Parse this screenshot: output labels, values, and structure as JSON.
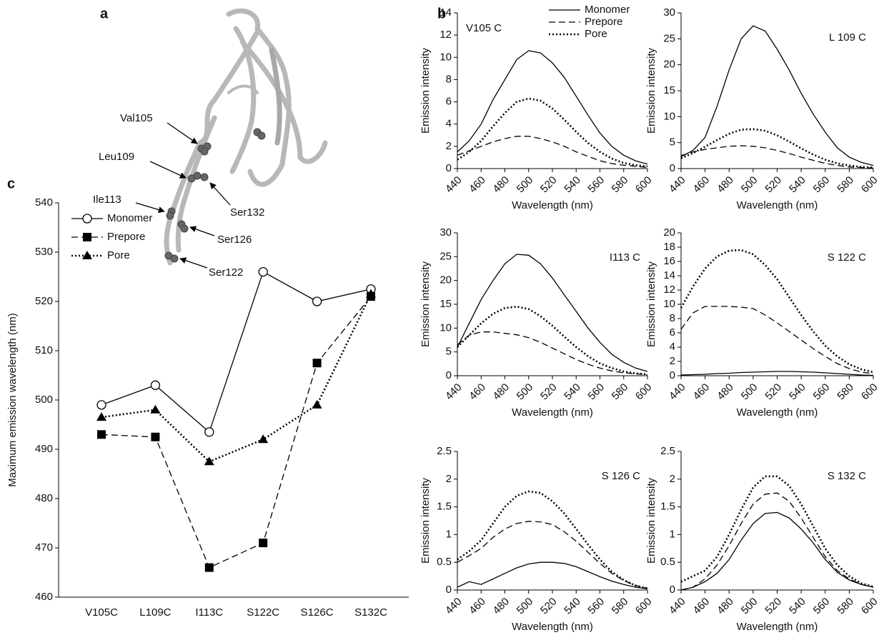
{
  "panel_labels": [
    "a",
    "b",
    "c"
  ],
  "panel_a": {
    "labels": [
      "Val105",
      "Leu109",
      "Ile113",
      "Ser132",
      "Ser126",
      "Ser122"
    ]
  },
  "chart_data": [
    {
      "type": "line",
      "annotation": "V105 C",
      "x": [
        440,
        450,
        460,
        470,
        480,
        490,
        500,
        510,
        520,
        530,
        540,
        550,
        560,
        570,
        580,
        590,
        600
      ],
      "xlim": [
        440,
        600
      ],
      "xticks": [
        440,
        460,
        480,
        500,
        520,
        540,
        560,
        580,
        600
      ],
      "ylim": [
        0,
        14
      ],
      "yticks": [
        0,
        2,
        4,
        6,
        8,
        10,
        12,
        14
      ],
      "xlabel": "Wavelength (nm)",
      "ylabel": "Emission intensity",
      "legend": "upper right",
      "series": [
        {
          "name": "Monomer",
          "color": "#000",
          "dash": "solid",
          "values": [
            1.5,
            2.5,
            4,
            6.2,
            8,
            9.8,
            10.6,
            10.4,
            9.5,
            8.2,
            6.5,
            4.8,
            3.2,
            2.0,
            1.2,
            0.7,
            0.4
          ]
        },
        {
          "name": "Prepore",
          "color": "#000",
          "dash": "dashed",
          "values": [
            1.2,
            1.6,
            2.0,
            2.4,
            2.7,
            2.9,
            2.9,
            2.7,
            2.4,
            2.0,
            1.5,
            1.1,
            0.7,
            0.45,
            0.3,
            0.2,
            0.1
          ]
        },
        {
          "name": "Pore",
          "color": "#000",
          "dash": "dotted",
          "values": [
            0.8,
            1.5,
            2.5,
            3.8,
            5.0,
            6.0,
            6.3,
            6.1,
            5.4,
            4.4,
            3.3,
            2.3,
            1.5,
            0.9,
            0.5,
            0.3,
            0.2
          ]
        }
      ]
    },
    {
      "type": "line",
      "annotation": "L 109 C",
      "x": [
        440,
        450,
        460,
        470,
        480,
        490,
        500,
        510,
        520,
        530,
        540,
        550,
        560,
        570,
        580,
        590,
        600
      ],
      "xlim": [
        440,
        600
      ],
      "xticks": [
        440,
        460,
        480,
        500,
        520,
        540,
        560,
        580,
        600
      ],
      "ylim": [
        0,
        30
      ],
      "yticks": [
        0,
        5,
        10,
        15,
        20,
        25,
        30
      ],
      "xlabel": "Wavelength (nm)",
      "ylabel": "Emission intensity",
      "series": [
        {
          "color": "#000",
          "dash": "solid",
          "values": [
            2.3,
            3.5,
            6,
            12,
            19,
            25,
            27.5,
            26.5,
            23,
            19,
            14.5,
            10.5,
            7,
            4,
            2.2,
            1.2,
            0.6
          ]
        },
        {
          "color": "#000",
          "dash": "dashed",
          "values": [
            2.5,
            3.2,
            3.7,
            4.0,
            4.3,
            4.4,
            4.3,
            4.0,
            3.5,
            2.9,
            2.2,
            1.6,
            1.0,
            0.6,
            0.3,
            0.2,
            0.1
          ]
        },
        {
          "color": "#000",
          "dash": "dotted",
          "values": [
            2,
            3,
            4.2,
            5.5,
            6.7,
            7.5,
            7.6,
            7.3,
            6.4,
            5.2,
            3.9,
            2.7,
            1.7,
            1,
            0.6,
            0.3,
            0.2
          ]
        }
      ]
    },
    {
      "type": "line",
      "annotation": "I113 C",
      "x": [
        440,
        450,
        460,
        470,
        480,
        490,
        500,
        510,
        520,
        530,
        540,
        550,
        560,
        570,
        580,
        590,
        600
      ],
      "xlim": [
        440,
        600
      ],
      "xticks": [
        440,
        460,
        480,
        500,
        520,
        540,
        560,
        580,
        600
      ],
      "ylim": [
        0,
        30
      ],
      "yticks": [
        0,
        5,
        10,
        15,
        20,
        25,
        30
      ],
      "xlabel": "Wavelength (nm)",
      "ylabel": "Emission intensity",
      "series": [
        {
          "color": "#000",
          "dash": "solid",
          "values": [
            6,
            11,
            16,
            20,
            23.5,
            25.5,
            25.3,
            23.5,
            20.5,
            17,
            13.5,
            10,
            7,
            4.5,
            2.8,
            1.6,
            0.9
          ]
        },
        {
          "color": "#000",
          "dash": "dashed",
          "values": [
            6.5,
            8.5,
            9.2,
            9.2,
            8.9,
            8.6,
            8,
            7,
            5.8,
            4.6,
            3.4,
            2.4,
            1.6,
            1,
            0.6,
            0.4,
            0.2
          ]
        },
        {
          "color": "#000",
          "dash": "dotted",
          "values": [
            6,
            8.5,
            11,
            13,
            14.2,
            14.5,
            14,
            12.5,
            10.5,
            8.2,
            6,
            4.1,
            2.6,
            1.6,
            0.9,
            0.5,
            0.3
          ]
        }
      ]
    },
    {
      "type": "line",
      "annotation": "S 122 C",
      "x": [
        440,
        450,
        460,
        470,
        480,
        490,
        500,
        510,
        520,
        530,
        540,
        550,
        560,
        570,
        580,
        590,
        600
      ],
      "xlim": [
        440,
        600
      ],
      "xticks": [
        440,
        460,
        480,
        500,
        520,
        540,
        560,
        580,
        600
      ],
      "ylim": [
        0,
        20
      ],
      "yticks": [
        0,
        2,
        4,
        6,
        8,
        10,
        12,
        14,
        16,
        18,
        20
      ],
      "xlabel": "Wavelength (nm)",
      "ylabel": "Emission intensity",
      "series": [
        {
          "color": "#000",
          "dash": "solid",
          "values": [
            0.1,
            0.15,
            0.2,
            0.3,
            0.35,
            0.45,
            0.5,
            0.55,
            0.6,
            0.6,
            0.55,
            0.5,
            0.4,
            0.3,
            0.2,
            0.1,
            0.05
          ]
        },
        {
          "color": "#000",
          "dash": "dashed",
          "values": [
            6.5,
            8.8,
            9.7,
            9.7,
            9.7,
            9.6,
            9.4,
            8.5,
            7.4,
            6.2,
            5,
            3.8,
            2.7,
            1.7,
            1,
            0.5,
            0.3
          ]
        },
        {
          "color": "#000",
          "dash": "dotted",
          "values": [
            9.5,
            12.5,
            15,
            16.7,
            17.5,
            17.6,
            17,
            15.5,
            13.5,
            11,
            8.5,
            6.2,
            4.2,
            2.7,
            1.6,
            0.9,
            0.5
          ]
        }
      ]
    },
    {
      "type": "line",
      "annotation": "S 126 C",
      "x": [
        440,
        450,
        460,
        470,
        480,
        490,
        500,
        510,
        520,
        530,
        540,
        550,
        560,
        570,
        580,
        590,
        600
      ],
      "xlim": [
        440,
        600
      ],
      "xticks": [
        440,
        460,
        480,
        500,
        520,
        540,
        560,
        580,
        600
      ],
      "ylim": [
        0,
        2.5
      ],
      "yticks": [
        0,
        0.5,
        1,
        1.5,
        2,
        2.5
      ],
      "xlabel": "Wavelength (nm)",
      "ylabel": "Emission intensity",
      "series": [
        {
          "color": "#000",
          "dash": "solid",
          "values": [
            0.05,
            0.15,
            0.1,
            0.2,
            0.3,
            0.4,
            0.47,
            0.5,
            0.5,
            0.48,
            0.42,
            0.33,
            0.24,
            0.16,
            0.1,
            0.05,
            0.02
          ]
        },
        {
          "color": "#000",
          "dash": "dashed",
          "values": [
            0.5,
            0.62,
            0.75,
            0.95,
            1.1,
            1.2,
            1.24,
            1.23,
            1.18,
            1.05,
            0.88,
            0.68,
            0.48,
            0.3,
            0.17,
            0.08,
            0.03
          ]
        },
        {
          "color": "#000",
          "dash": "dotted",
          "values": [
            0.55,
            0.7,
            0.9,
            1.2,
            1.5,
            1.7,
            1.78,
            1.75,
            1.6,
            1.38,
            1.1,
            0.82,
            0.55,
            0.33,
            0.18,
            0.08,
            0.03
          ]
        }
      ]
    },
    {
      "type": "line",
      "annotation": "S 132 C",
      "x": [
        440,
        450,
        460,
        470,
        480,
        490,
        500,
        510,
        520,
        530,
        540,
        550,
        560,
        570,
        580,
        590,
        600
      ],
      "xlim": [
        440,
        600
      ],
      "xticks": [
        440,
        460,
        480,
        500,
        520,
        540,
        560,
        580,
        600
      ],
      "ylim": [
        0,
        2.5
      ],
      "yticks": [
        0,
        0.5,
        1,
        1.5,
        2,
        2.5
      ],
      "xlabel": "Wavelength (nm)",
      "ylabel": "Emission intensity",
      "series": [
        {
          "color": "#000",
          "dash": "solid",
          "values": [
            0,
            0.05,
            0.15,
            0.3,
            0.55,
            0.9,
            1.2,
            1.38,
            1.4,
            1.3,
            1.1,
            0.85,
            0.55,
            0.32,
            0.18,
            0.1,
            0.05
          ]
        },
        {
          "color": "#000",
          "dash": "dashed",
          "values": [
            0,
            0.05,
            0.2,
            0.45,
            0.8,
            1.2,
            1.55,
            1.73,
            1.75,
            1.6,
            1.3,
            0.95,
            0.6,
            0.35,
            0.2,
            0.1,
            0.05
          ]
        },
        {
          "color": "#000",
          "dash": "dotted",
          "values": [
            0.15,
            0.25,
            0.35,
            0.6,
            1.0,
            1.45,
            1.85,
            2.05,
            2.05,
            1.88,
            1.55,
            1.15,
            0.75,
            0.45,
            0.25,
            0.12,
            0.06
          ]
        }
      ]
    },
    {
      "type": "category-line",
      "categories": [
        "V105C",
        "L109C",
        "I113C",
        "S122C",
        "S126C",
        "S132C"
      ],
      "ylim": [
        460,
        540
      ],
      "yticks": [
        460,
        470,
        480,
        490,
        500,
        510,
        520,
        530,
        540
      ],
      "ylabel": "Maximum emission wavelength (nm)",
      "legend": "upper left",
      "series": [
        {
          "name": "Monomer",
          "color": "#000",
          "dash": "solid",
          "marker": "circle",
          "values": [
            499,
            503,
            493.5,
            526,
            520,
            522.5
          ]
        },
        {
          "name": "Prepore",
          "color": "#000",
          "dash": "dashed",
          "marker": "square",
          "values": [
            493,
            492.5,
            466,
            471,
            507.5,
            521
          ]
        },
        {
          "name": "Pore",
          "color": "#000",
          "dash": "dotted",
          "marker": "triangle",
          "values": [
            496.5,
            498,
            487.5,
            492,
            499,
            521.5
          ]
        }
      ]
    }
  ]
}
